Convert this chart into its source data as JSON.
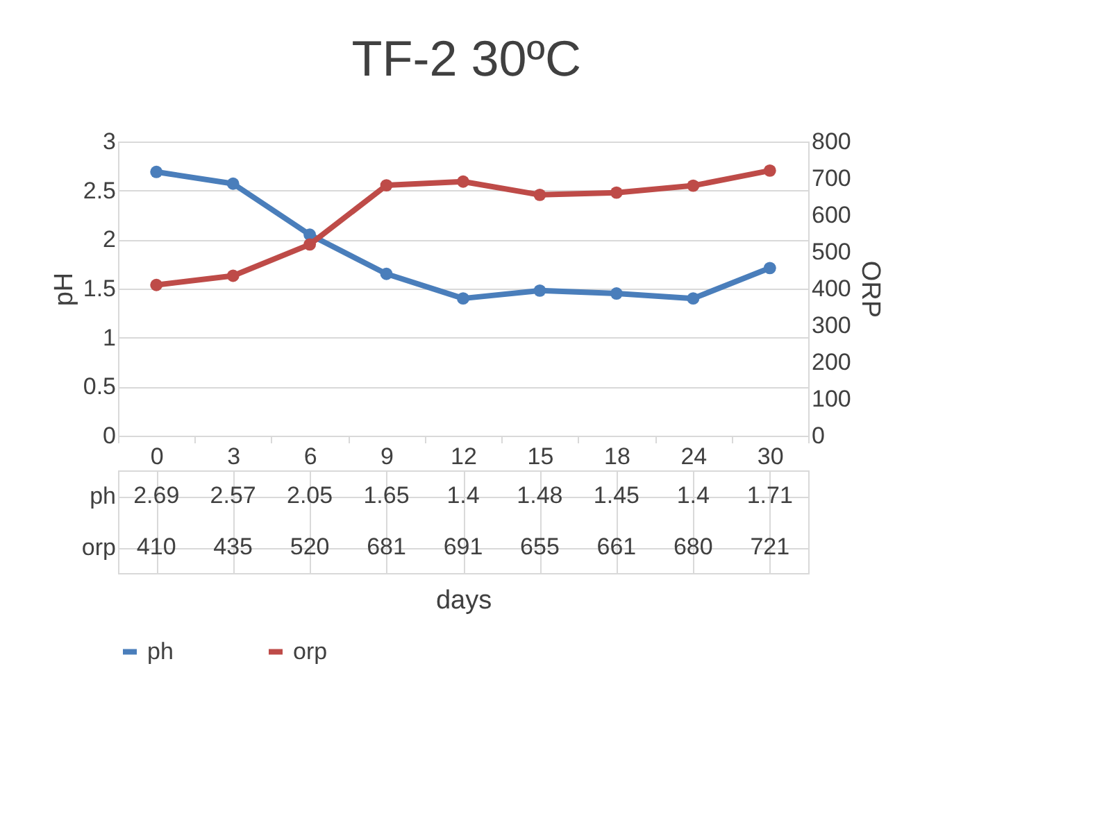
{
  "chart_data": {
    "type": "line",
    "title": "TF-2 30ºC",
    "xlabel": "days",
    "ylabel": "pH",
    "y2label": "ORP",
    "categories": [
      "0",
      "3",
      "6",
      "9",
      "12",
      "15",
      "18",
      "24",
      "30"
    ],
    "series": [
      {
        "name": "ph",
        "color": "#4a7ebb",
        "values": [
          2.69,
          2.57,
          2.05,
          1.65,
          1.4,
          1.48,
          1.45,
          1.4,
          1.71
        ]
      },
      {
        "name": "orp",
        "color": "#be4b48",
        "axis": "y2",
        "values": [
          410,
          435,
          520,
          681,
          691,
          655,
          661,
          680,
          721
        ]
      }
    ],
    "ylim": [
      0,
      3
    ],
    "yticks": [
      0,
      0.5,
      1,
      1.5,
      2,
      2.5,
      3
    ],
    "y2lim": [
      0,
      800
    ],
    "y2ticks": [
      0,
      100,
      200,
      300,
      400,
      500,
      600,
      700,
      800
    ],
    "grid": "y",
    "legend": "bottom",
    "marker": "circle",
    "line_style": "solid",
    "data_labels": true
  }
}
